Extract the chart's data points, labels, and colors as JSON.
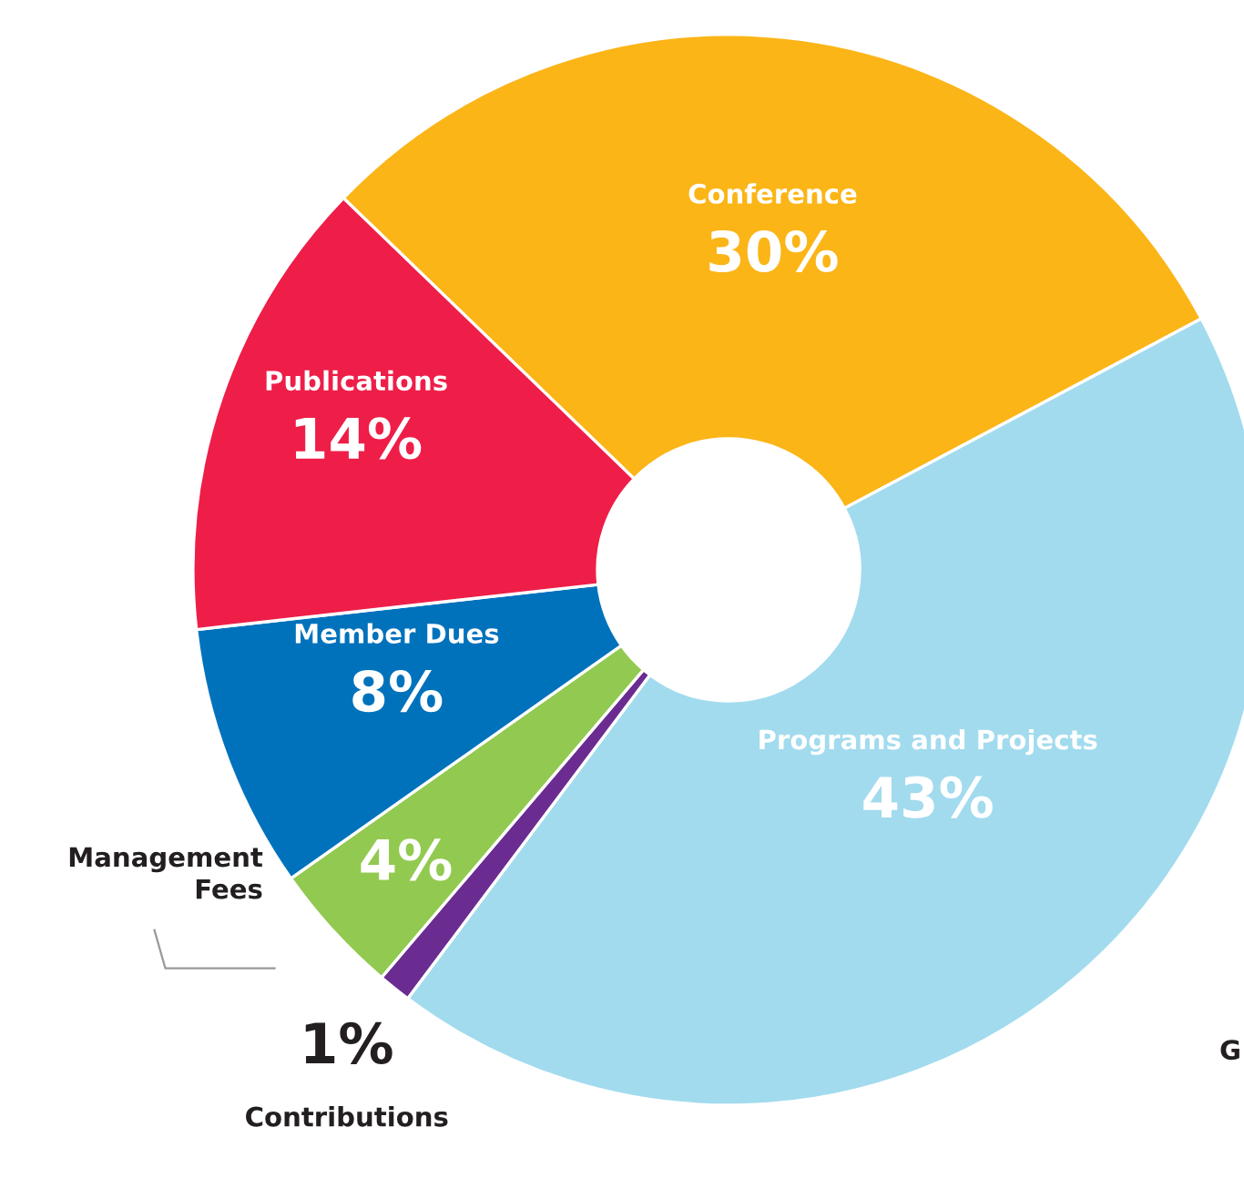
{
  "chart_data": {
    "type": "donut",
    "categories": [
      "Conference",
      "Programs and Projects",
      "Contributions",
      "Management Fees",
      "Member Dues",
      "Publications"
    ],
    "values": [
      30,
      43,
      1,
      4,
      8,
      14
    ],
    "colors": [
      "#fbb517",
      "#a2dbee",
      "#6b2c91",
      "#92c950",
      "#0072bc",
      "#ee1e48"
    ],
    "value_labels": [
      "30%",
      "43%",
      "1%",
      "4%",
      "8%",
      "14%"
    ],
    "annotations": [
      "G"
    ]
  }
}
